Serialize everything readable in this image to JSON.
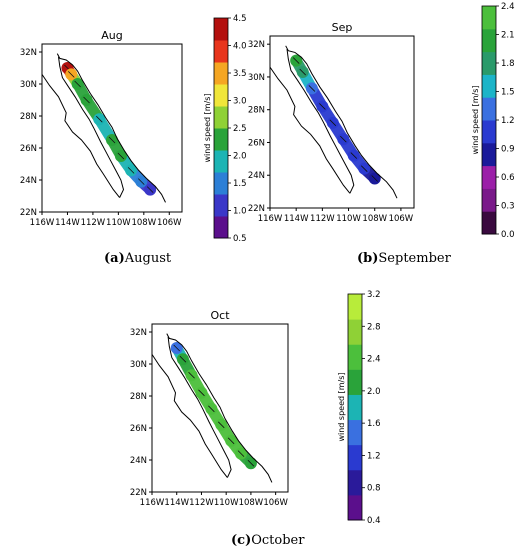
{
  "chart_data": [
    {
      "type": "heatmap",
      "title": "Aug",
      "x_ticks": [
        "116W",
        "114W",
        "112W",
        "110W",
        "108W",
        "106W"
      ],
      "y_ticks": [
        "22N",
        "24N",
        "26N",
        "28N",
        "30N",
        "32N"
      ],
      "xlim": [
        -116,
        -105
      ],
      "ylim": [
        22,
        32.5
      ],
      "colorbar_label": "wind speed [m/s]",
      "colorbar_ticks": [
        "0.5",
        "1.0",
        "1.5",
        "2.0",
        "2.5",
        "3.0",
        "3.5",
        "4.0",
        "4.5"
      ],
      "colorbar_range": [
        0.5,
        4.5
      ],
      "colorbar_colors": [
        "#5b0f8c",
        "#3a37c8",
        "#2c7fd6",
        "#1cb4b4",
        "#2aa33a",
        "#8fd136",
        "#f0e63a",
        "#f5a623",
        "#e8351c",
        "#b3100e"
      ],
      "caption_letter": "(a)",
      "caption_text": "August",
      "samples": [
        {
          "lon": -114.0,
          "lat": 31.0,
          "speed": 4.2
        },
        {
          "lon": -113.7,
          "lat": 30.6,
          "speed": 3.3
        },
        {
          "lon": -113.2,
          "lat": 30.0,
          "speed": 2.4
        },
        {
          "lon": -112.5,
          "lat": 29.0,
          "speed": 2.2
        },
        {
          "lon": -111.5,
          "lat": 27.8,
          "speed": 2.0
        },
        {
          "lon": -110.5,
          "lat": 26.5,
          "speed": 2.1
        },
        {
          "lon": -109.8,
          "lat": 25.5,
          "speed": 2.2
        },
        {
          "lon": -109.0,
          "lat": 24.6,
          "speed": 1.8
        },
        {
          "lon": -108.2,
          "lat": 23.9,
          "speed": 1.5
        },
        {
          "lon": -107.5,
          "lat": 23.4,
          "speed": 0.9
        }
      ]
    },
    {
      "type": "heatmap",
      "title": "Sep",
      "x_ticks": [
        "116W",
        "114W",
        "112W",
        "110W",
        "108W",
        "106W"
      ],
      "y_ticks": [
        "22N",
        "24N",
        "26N",
        "28N",
        "30N",
        "32N"
      ],
      "xlim": [
        -116,
        -105
      ],
      "ylim": [
        22,
        32.5
      ],
      "colorbar_label": "wind speed [m/s]",
      "colorbar_ticks": [
        "0.0",
        "0.3",
        "0.6",
        "0.9",
        "1.2",
        "1.5",
        "1.8",
        "2.1",
        "2.4"
      ],
      "colorbar_range": [
        0.0,
        2.4
      ],
      "colorbar_colors": [
        "#3a0a3f",
        "#7a1a8a",
        "#9b1fa8",
        "#1a1a9a",
        "#2a3ad0",
        "#3a70e0",
        "#1cb4c8",
        "#2a9a6a",
        "#2aa33a",
        "#4cbf3c"
      ],
      "caption_letter": "(b)",
      "caption_text": "September",
      "samples": [
        {
          "lon": -114.0,
          "lat": 31.0,
          "speed": 2.0
        },
        {
          "lon": -113.5,
          "lat": 30.3,
          "speed": 1.8
        },
        {
          "lon": -112.8,
          "lat": 29.3,
          "speed": 1.2
        },
        {
          "lon": -112.0,
          "lat": 28.2,
          "speed": 1.1
        },
        {
          "lon": -111.2,
          "lat": 27.2,
          "speed": 1.0
        },
        {
          "lon": -110.4,
          "lat": 26.2,
          "speed": 1.0
        },
        {
          "lon": -109.6,
          "lat": 25.2,
          "speed": 1.1
        },
        {
          "lon": -108.8,
          "lat": 24.4,
          "speed": 1.0
        },
        {
          "lon": -108.0,
          "lat": 23.8,
          "speed": 0.9
        }
      ]
    },
    {
      "type": "heatmap",
      "title": "Oct",
      "x_ticks": [
        "116W",
        "114W",
        "112W",
        "110W",
        "108W",
        "106W"
      ],
      "y_ticks": [
        "22N",
        "24N",
        "26N",
        "28N",
        "30N",
        "32N"
      ],
      "xlim": [
        -116,
        -105
      ],
      "ylim": [
        22,
        32.5
      ],
      "colorbar_label": "wind speed [m/s]",
      "colorbar_ticks": [
        "0.4",
        "0.8",
        "1.2",
        "1.6",
        "2.0",
        "2.4",
        "2.8",
        "3.2"
      ],
      "colorbar_range": [
        0.4,
        3.2
      ],
      "colorbar_colors": [
        "#5b0f8c",
        "#2a1a9a",
        "#2a3ad0",
        "#3a70e0",
        "#1cb4b4",
        "#2aa33a",
        "#4cbf3c",
        "#8fd136",
        "#b8ec3a"
      ],
      "caption_letter": "(c)",
      "caption_text": "October",
      "samples": [
        {
          "lon": -114.0,
          "lat": 31.0,
          "speed": 1.6
        },
        {
          "lon": -113.5,
          "lat": 30.3,
          "speed": 2.2
        },
        {
          "lon": -112.8,
          "lat": 29.3,
          "speed": 2.3
        },
        {
          "lon": -112.0,
          "lat": 28.2,
          "speed": 2.4
        },
        {
          "lon": -111.2,
          "lat": 27.2,
          "speed": 2.4
        },
        {
          "lon": -110.4,
          "lat": 26.2,
          "speed": 2.5
        },
        {
          "lon": -109.6,
          "lat": 25.2,
          "speed": 2.4
        },
        {
          "lon": -108.8,
          "lat": 24.4,
          "speed": 2.3
        },
        {
          "lon": -108.0,
          "lat": 23.8,
          "speed": 2.2
        }
      ]
    }
  ]
}
